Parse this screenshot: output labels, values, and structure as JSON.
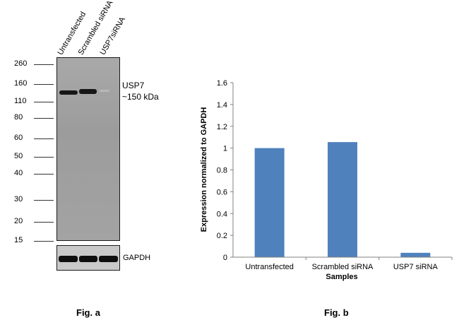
{
  "figure_a": {
    "caption": "Fig. a",
    "lanes": [
      "Untransfected",
      "Scrambled siRNA",
      "USP7siRNA"
    ],
    "mw_markers": [
      "260",
      "160",
      "110",
      "80",
      "60",
      "50",
      "40",
      "30",
      "20",
      "15"
    ],
    "target_label": "USP7",
    "target_size": "~150 kDa",
    "loading_control": "GAPDH"
  },
  "figure_b": {
    "caption": "Fig. b"
  },
  "colors": {
    "bar": "#4f81bd",
    "axis": "#808080"
  },
  "chart_data": {
    "type": "bar",
    "categories": [
      "Untransfected",
      "Scrambled siRNA",
      "USP7 siRNA"
    ],
    "values": [
      1.0,
      1.055,
      0.04
    ],
    "xlabel": "Samples",
    "ylabel": "Expression normalized to GAPDH",
    "ylim": [
      0,
      1.6
    ],
    "yticks": [
      "0",
      "0.2",
      "0.4",
      "0.6",
      "0.8",
      "1",
      "1.2",
      "1.4",
      "1.6"
    ],
    "grid": false,
    "legend": "none"
  }
}
